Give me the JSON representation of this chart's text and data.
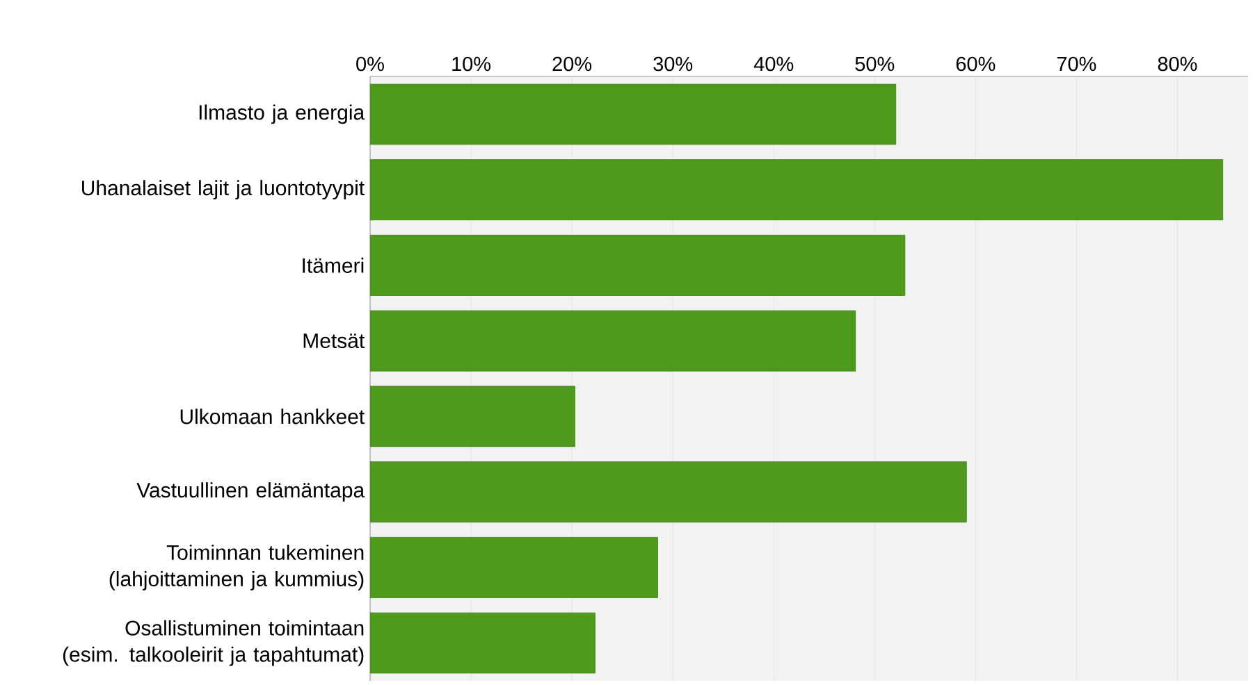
{
  "chart_data": {
    "type": "bar",
    "orientation": "horizontal",
    "categories": [
      "Ilmasto ja energia",
      "Uhanalaiset lajit ja luontotyypit",
      "Itämeri",
      "Metsät",
      "Ulkomaan hankkeet",
      "Vastuullinen elämäntapa",
      "Toiminnan tukeminen (lahjoittaminen ja kummius)",
      "Osallistuminen toimintaan (esim. talkooleirit ja tapahtumat)"
    ],
    "values": [
      52.1,
      84.5,
      53.0,
      48.1,
      20.3,
      59.1,
      28.5,
      22.3
    ],
    "color": "#4e9a1c",
    "xlim": [
      0,
      87
    ],
    "xticks": [
      {
        "value": 0,
        "label": "0%"
      },
      {
        "value": 10,
        "label": "10%"
      },
      {
        "value": 20,
        "label": "20%"
      },
      {
        "value": 30,
        "label": "30%"
      },
      {
        "value": 40,
        "label": "40%"
      },
      {
        "value": 50,
        "label": "50%"
      },
      {
        "value": 60,
        "label": "60%"
      },
      {
        "value": 70,
        "label": "70%"
      },
      {
        "value": 80,
        "label": "80%"
      }
    ],
    "grid": "x"
  }
}
